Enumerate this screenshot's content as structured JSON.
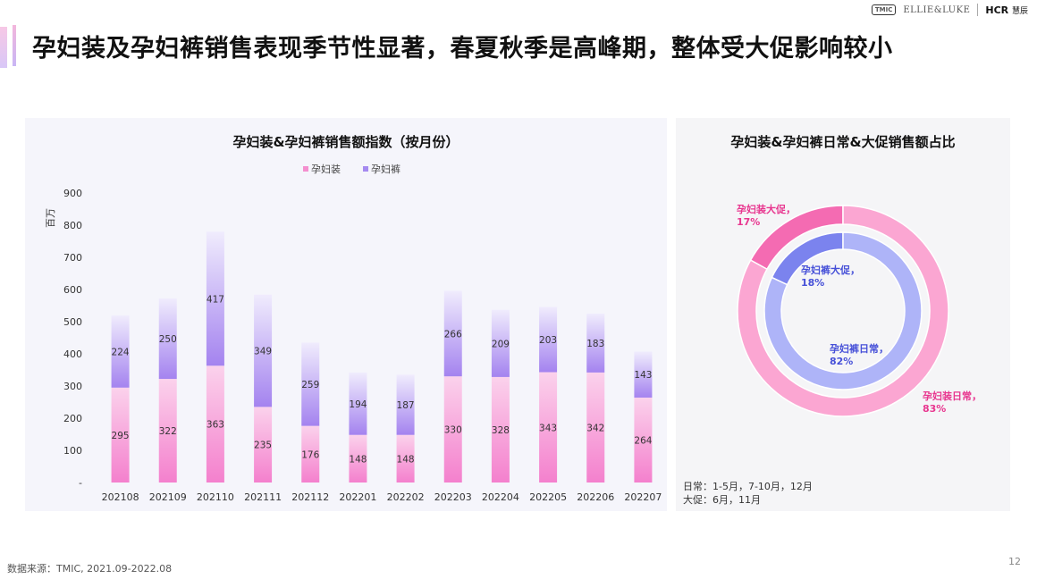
{
  "header": {
    "title": "孕妇装及孕妇裤销售表现季节性显著，春夏秋季是高峰期，整体受大促影响较小",
    "logo_tmic": "TMIC",
    "logo_ellie": "ELLIE&LUKE",
    "logo_hcr": "HCR",
    "logo_hcr_cn": "慧辰"
  },
  "footer": {
    "source": "数据来源：TMIC, 2021.09-2022.08",
    "page_number": "12"
  },
  "notes": {
    "daily": "日常：1-5月，7-10月，12月",
    "promo": "大促：6月，11月"
  },
  "colors": {
    "maternity_wear": "#f48fcf",
    "maternity_pants": "#a58af0",
    "donut_outer_daily": "#fba6d2",
    "donut_outer_promo": "#f46bb2",
    "donut_inner_daily": "#aeb4f8",
    "donut_inner_promo": "#7b83ee",
    "label_pink": "#e8368f",
    "label_blue": "#4650d8"
  },
  "chart_data": [
    {
      "type": "bar",
      "stacked": true,
      "title": "孕妇装&孕妇裤销售额指数（按月份）",
      "ylabel": "百万",
      "ylim": [
        0,
        900
      ],
      "yticks": [
        "-",
        "100",
        "200",
        "300",
        "400",
        "500",
        "600",
        "700",
        "800",
        "900"
      ],
      "legend_position": "top",
      "categories": [
        "202108",
        "202109",
        "202110",
        "202111",
        "202112",
        "202201",
        "202202",
        "202203",
        "202204",
        "202205",
        "202206",
        "202207"
      ],
      "series": [
        {
          "name": "孕妇装",
          "values": [
            295,
            322,
            363,
            235,
            176,
            148,
            148,
            330,
            328,
            343,
            342,
            264
          ]
        },
        {
          "name": "孕妇裤",
          "values": [
            224,
            250,
            417,
            349,
            259,
            194,
            187,
            266,
            209,
            203,
            183,
            143
          ]
        }
      ]
    },
    {
      "type": "pie",
      "subtype": "donut",
      "title": "孕妇装&孕妇裤日常&大促销售额占比",
      "rings": [
        {
          "ring": "outer",
          "slices": [
            {
              "label": "孕妇装大促，",
              "percent": "17%",
              "value": 17
            },
            {
              "label": "孕妇装日常，",
              "percent": "83%",
              "value": 83
            }
          ]
        },
        {
          "ring": "inner",
          "slices": [
            {
              "label": "孕妇裤大促，",
              "percent": "18%",
              "value": 18
            },
            {
              "label": "孕妇裤日常，",
              "percent": "82%",
              "value": 82
            }
          ]
        }
      ]
    }
  ]
}
